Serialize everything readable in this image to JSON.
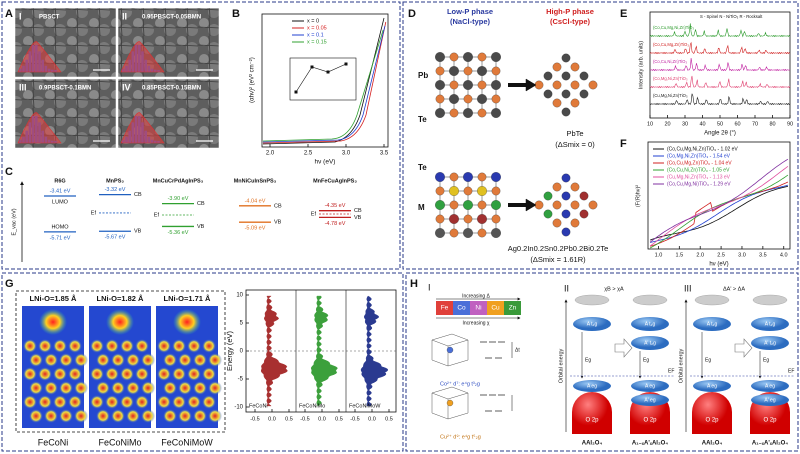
{
  "A": {
    "label": "A",
    "images": [
      [
        "I",
        "PBSCT"
      ],
      [
        "II",
        "0.95PBSCT-0.05BMN"
      ],
      [
        "III",
        "0.9PBSCT-0.1BMN"
      ],
      [
        "IV",
        "0.85PBSCT-0.15BMN"
      ]
    ]
  },
  "B": {
    "label": "B",
    "xlabel": "hν (eV)",
    "ylabel": "(αhν)² (eV² cm⁻²)",
    "xticks": [
      "2.0",
      "2.5",
      "3.0",
      "3.5"
    ],
    "legend": [
      {
        "name": "x = 0",
        "color": "#111111"
      },
      {
        "name": "x = 0.05",
        "color": "#d62020"
      },
      {
        "name": "x = 0.1",
        "color": "#2040d0"
      },
      {
        "name": "x = 0.15",
        "color": "#30a030"
      }
    ]
  },
  "C": {
    "label": "C",
    "ylabel": "E_vac (eV)",
    "columns": [
      {
        "name": "R6G",
        "top": "-3.41 eV",
        "top_tag": "LUMO",
        "bottom": "-5.71 eV",
        "bottom_tag": "HOMO",
        "color": "#2060c0"
      },
      {
        "name": "MnPS₃",
        "top": "-3.32 eV",
        "top_tag": "CB",
        "bottom": "-5.67 eV",
        "bottom_tag": "VB",
        "fermi": "Ef",
        "color": "#2060c0"
      },
      {
        "name": "MnCuCrPdAgInPS₃",
        "top": "-3.90 eV",
        "top_tag": "CB",
        "bottom": "-5.36 eV",
        "bottom_tag": "VB",
        "fermi": "Ef",
        "color": "#30a030"
      },
      {
        "name": "MnNiCuInSnPS₃",
        "top": "-4.04 eV",
        "top_tag": "CB",
        "bottom": "-5.09 eV",
        "bottom_tag": "VB",
        "color": "#e07020"
      },
      {
        "name": "MnFeCuAgInPS₃",
        "top": "-4.35 eV",
        "top_tag": "CB",
        "bottom": "-4.78 eV",
        "bottom_tag": "VB",
        "fermi": "Ef",
        "color": "#c02020"
      }
    ]
  },
  "D": {
    "label": "D",
    "low": [
      "Low-P phase",
      "(NaCl-type)"
    ],
    "high": [
      "High-P phase",
      "(CsCl-type)"
    ],
    "atoms1": [
      "Pb",
      "Te"
    ],
    "compound1": [
      "PbTe",
      "(ΔSmix = 0)"
    ],
    "atoms2": [
      "Te",
      "M"
    ],
    "compound2": [
      "Ag0.2In0.2Sn0.2Pb0.2Bi0.2Te",
      "(ΔSmix = 1.61R)"
    ]
  },
  "E": {
    "label": "E",
    "xlabel": "Angle 2θ (°)",
    "ylabel": "Intensity (arb. units)",
    "key": "S - Spinel   N - NiTiO₃   R - Rocksalt",
    "xticks": [
      "10",
      "20",
      "30",
      "40",
      "50",
      "60",
      "70",
      "80",
      "90"
    ],
    "traces": [
      {
        "name": "(Co,Cu,Mg,Ni,Zn)TiO₃",
        "color": "#2a9a2a"
      },
      {
        "name": "(Co,Cu,Mg,Zn)TiO₃",
        "color": "#d02020"
      },
      {
        "name": "(Co,Cu,Ni,Zn)TiO₃",
        "color": "#c020a0"
      },
      {
        "name": "(Co,Mg,Ni,Zn)TiO₃",
        "color": "#e04070"
      },
      {
        "name": "(Cu,Mg,Ni,Zn)TiO₃",
        "color": "#222222"
      }
    ]
  },
  "F": {
    "label": "F",
    "xlabel": "hν (eV)",
    "ylabel": "(F(R)hν)²",
    "xticks": [
      "1.0",
      "1.5",
      "2.0",
      "2.5",
      "3.0",
      "3.5",
      "4.0"
    ],
    "legend": [
      {
        "name": "(Co,Cu,Mg,Ni,Zn)TiO₃ - 1.02 eV",
        "color": "#111111"
      },
      {
        "name": "(Co,Mg,Ni,Zn)TiO₃ - 1.54 eV",
        "color": "#2040d0"
      },
      {
        "name": "(Co,Cu,Mg,Zn)TiO₃ - 1.04 eV",
        "color": "#d02020"
      },
      {
        "name": "(Co,Cu,Ni,Zn)TiO₃ - 1.05 eV",
        "color": "#30a030"
      },
      {
        "name": "(Cu,Mg,Ni,Zn)TiO₃ - 1.13 eV",
        "color": "#e050a0"
      },
      {
        "name": "(Co,Cu,Mg,Ni)TiO₃ - 1.29 eV",
        "color": "#8030a0"
      }
    ]
  },
  "G": {
    "label": "G",
    "maps": [
      {
        "bond": "LNi-O=1.85 Å",
        "name": "FeCoNi"
      },
      {
        "bond": "LNi-O=1.82 Å",
        "name": "FeCoNiMo"
      },
      {
        "bond": "LNi-O=1.71 Å",
        "name": "FeCoNiMoW"
      }
    ],
    "ylabel": "Energy (eV)",
    "yticks": [
      "10",
      "5",
      "0",
      "-5",
      "-10"
    ],
    "xticks": [
      "-0.5",
      "0.0",
      "0.5"
    ],
    "dos": [
      {
        "name": "FeCoNi",
        "color": "#a83030"
      },
      {
        "name": "FeCoNiMo",
        "color": "#3ca03c"
      },
      {
        "name": "FeCoNiMoW",
        "color": "#2a3a90"
      }
    ]
  },
  "H": {
    "label": "H",
    "I": {
      "numeral": "I",
      "delta": "Increasing Δ",
      "chi": "Increasing χ",
      "gap": "Δt",
      "elements": [
        {
          "name": "Fe",
          "color": "#e0403a"
        },
        {
          "name": "Co",
          "color": "#4a6fd8"
        },
        {
          "name": "Ni",
          "color": "#c060c0"
        },
        {
          "name": "Cu",
          "color": "#f0a020"
        },
        {
          "name": "Zn",
          "color": "#3a9a3a"
        }
      ],
      "co": "Co²⁺ d⁷: e⁴g t³₂g",
      "cu": "Cu²⁺ d⁹: e⁴g t⁵₂g"
    },
    "II": {
      "numeral": "II",
      "condition": "χB > χA"
    },
    "III": {
      "numeral": "III",
      "condition": "ΔA' > ΔA"
    },
    "axis": "Orbital energy",
    "levels": {
      "t2g": "A t₂g",
      "eg": "A eg",
      "t2g2": "A' t₂g",
      "eg2": "A' eg",
      "o2p": "O 2p",
      "gap": "Eg",
      "fermi": "EF"
    },
    "formulas": [
      "AAl₂O₄",
      "A₁₋ₓA'ₓAl₂O₄"
    ]
  }
}
